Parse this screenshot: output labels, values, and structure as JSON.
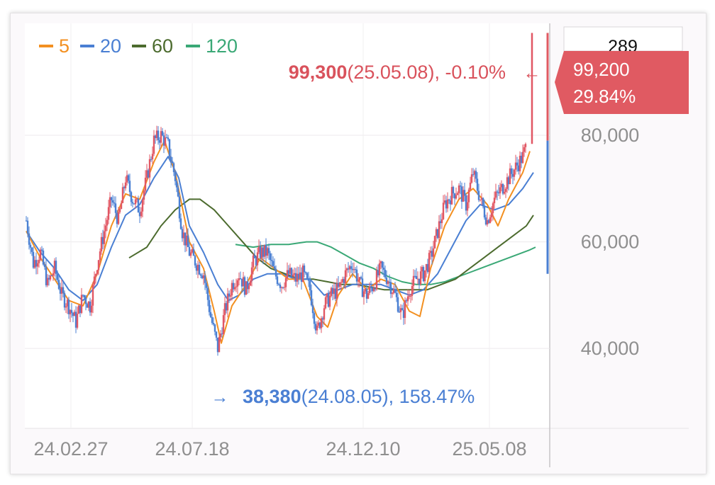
{
  "chart_data": {
    "type": "candlestick",
    "x_ticks": [
      "24.02.27",
      "24.07.18",
      "24.12.10",
      "25.05.08"
    ],
    "y_ticks": [
      "40,000",
      "60,000",
      "80,000"
    ],
    "ylim": [
      25000,
      101000
    ],
    "grid": true,
    "legend": [
      {
        "name": "5",
        "color": "#f39021"
      },
      {
        "name": "20",
        "color": "#4a7fd3"
      },
      {
        "name": "60",
        "color": "#4c6b2e"
      },
      {
        "name": "120",
        "color": "#3aa876"
      }
    ],
    "annotations": {
      "high": {
        "arrow": "←",
        "value": "99,300",
        "date_text": "(25.05.08), -0.10%",
        "color": "#d9525c"
      },
      "low": {
        "arrow": "→",
        "value": "38,380",
        "date_text": "(24.08.05), 158.47%",
        "color": "#4a7fd3"
      }
    },
    "current_price": {
      "price": "99,200",
      "change": "29.84%",
      "value": 99200,
      "color": "#e05a62"
    },
    "volume_label": "289",
    "price_anchors": [
      [
        0,
        64000
      ],
      [
        10,
        56000
      ],
      [
        20,
        58000
      ],
      [
        30,
        52000
      ],
      [
        40,
        55000
      ],
      [
        50,
        50000
      ],
      [
        60,
        48000
      ],
      [
        70,
        45000
      ],
      [
        80,
        50000
      ],
      [
        90,
        48000
      ],
      [
        100,
        56000
      ],
      [
        110,
        62000
      ],
      [
        120,
        68000
      ],
      [
        130,
        64000
      ],
      [
        140,
        72000
      ],
      [
        150,
        68000
      ],
      [
        160,
        66000
      ],
      [
        170,
        72000
      ],
      [
        180,
        79000
      ],
      [
        190,
        80000
      ],
      [
        200,
        78000
      ],
      [
        210,
        72000
      ],
      [
        220,
        62000
      ],
      [
        230,
        58000
      ],
      [
        240,
        56000
      ],
      [
        250,
        54000
      ],
      [
        260,
        46000
      ],
      [
        270,
        40000
      ],
      [
        280,
        47000
      ],
      [
        290,
        52000
      ],
      [
        300,
        54000
      ],
      [
        310,
        51000
      ],
      [
        320,
        56000
      ],
      [
        330,
        58000
      ],
      [
        340,
        58000
      ],
      [
        350,
        54000
      ],
      [
        360,
        52000
      ],
      [
        370,
        54000
      ],
      [
        380,
        53000
      ],
      [
        390,
        54000
      ],
      [
        400,
        51000
      ],
      [
        410,
        43000
      ],
      [
        420,
        48000
      ],
      [
        430,
        50000
      ],
      [
        440,
        51000
      ],
      [
        450,
        54000
      ],
      [
        460,
        56000
      ],
      [
        470,
        52000
      ],
      [
        480,
        50000
      ],
      [
        490,
        52000
      ],
      [
        500,
        55000
      ],
      [
        510,
        53000
      ],
      [
        520,
        50000
      ],
      [
        530,
        46000
      ],
      [
        540,
        51000
      ],
      [
        550,
        53000
      ],
      [
        560,
        54000
      ],
      [
        570,
        57000
      ],
      [
        580,
        62000
      ],
      [
        590,
        67000
      ],
      [
        600,
        69000
      ],
      [
        610,
        70000
      ],
      [
        620,
        67000
      ],
      [
        630,
        73000
      ],
      [
        640,
        68000
      ],
      [
        650,
        64000
      ],
      [
        660,
        68000
      ],
      [
        670,
        70000
      ],
      [
        680,
        72000
      ],
      [
        690,
        74000
      ],
      [
        700,
        76000
      ],
      [
        705,
        78000
      ],
      [
        713,
        99200
      ]
    ],
    "ma5": [
      [
        0,
        62000
      ],
      [
        20,
        57000
      ],
      [
        40,
        53000
      ],
      [
        60,
        49000
      ],
      [
        80,
        48000
      ],
      [
        100,
        54000
      ],
      [
        120,
        63000
      ],
      [
        140,
        69000
      ],
      [
        160,
        68000
      ],
      [
        180,
        75000
      ],
      [
        195,
        79000
      ],
      [
        210,
        73000
      ],
      [
        230,
        60000
      ],
      [
        250,
        55000
      ],
      [
        265,
        47000
      ],
      [
        275,
        41000
      ],
      [
        290,
        48000
      ],
      [
        310,
        52000
      ],
      [
        330,
        57000
      ],
      [
        350,
        55000
      ],
      [
        370,
        53000
      ],
      [
        390,
        53000
      ],
      [
        410,
        46000
      ],
      [
        425,
        44000
      ],
      [
        440,
        50000
      ],
      [
        460,
        54000
      ],
      [
        480,
        51000
      ],
      [
        500,
        53000
      ],
      [
        520,
        52000
      ],
      [
        540,
        47000
      ],
      [
        555,
        46000
      ],
      [
        570,
        55000
      ],
      [
        590,
        63000
      ],
      [
        610,
        68000
      ],
      [
        630,
        70000
      ],
      [
        650,
        67000
      ],
      [
        665,
        63000
      ],
      [
        680,
        68000
      ],
      [
        700,
        73000
      ],
      [
        710,
        77000
      ]
    ],
    "ma20": [
      [
        0,
        62000
      ],
      [
        20,
        58000
      ],
      [
        40,
        55000
      ],
      [
        60,
        51000
      ],
      [
        80,
        49000
      ],
      [
        100,
        52000
      ],
      [
        120,
        59000
      ],
      [
        140,
        65000
      ],
      [
        160,
        67000
      ],
      [
        180,
        72000
      ],
      [
        200,
        76000
      ],
      [
        215,
        72000
      ],
      [
        230,
        63000
      ],
      [
        250,
        58000
      ],
      [
        270,
        52000
      ],
      [
        285,
        49000
      ],
      [
        300,
        50000
      ],
      [
        320,
        53000
      ],
      [
        340,
        54000
      ],
      [
        360,
        54000
      ],
      [
        380,
        53000
      ],
      [
        400,
        53000
      ],
      [
        420,
        50000
      ],
      [
        440,
        51000
      ],
      [
        460,
        52000
      ],
      [
        480,
        52000
      ],
      [
        500,
        52000
      ],
      [
        520,
        51000
      ],
      [
        540,
        50000
      ],
      [
        560,
        51000
      ],
      [
        580,
        54000
      ],
      [
        600,
        59000
      ],
      [
        620,
        64000
      ],
      [
        640,
        67000
      ],
      [
        660,
        66000
      ],
      [
        680,
        67000
      ],
      [
        700,
        70000
      ],
      [
        715,
        73000
      ]
    ],
    "ma60": [
      [
        145,
        57000
      ],
      [
        170,
        59000
      ],
      [
        190,
        63000
      ],
      [
        210,
        66000
      ],
      [
        230,
        68000
      ],
      [
        245,
        68000
      ],
      [
        265,
        66000
      ],
      [
        285,
        63000
      ],
      [
        305,
        60000
      ],
      [
        325,
        57000
      ],
      [
        345,
        55000
      ],
      [
        365,
        54000
      ],
      [
        385,
        53000
      ],
      [
        405,
        53000
      ],
      [
        425,
        52500
      ],
      [
        445,
        52000
      ],
      [
        465,
        52000
      ],
      [
        485,
        51500
      ],
      [
        505,
        51000
      ],
      [
        525,
        51000
      ],
      [
        545,
        51000
      ],
      [
        565,
        51000
      ],
      [
        585,
        52000
      ],
      [
        605,
        53000
      ],
      [
        625,
        55000
      ],
      [
        645,
        57000
      ],
      [
        665,
        59000
      ],
      [
        685,
        61000
      ],
      [
        705,
        63000
      ],
      [
        715,
        65000
      ]
    ],
    "ma120": [
      [
        295,
        59500
      ],
      [
        320,
        59000
      ],
      [
        345,
        59500
      ],
      [
        370,
        59500
      ],
      [
        395,
        60000
      ],
      [
        410,
        60000
      ],
      [
        430,
        59000
      ],
      [
        450,
        57500
      ],
      [
        470,
        56000
      ],
      [
        490,
        55000
      ],
      [
        510,
        53500
      ],
      [
        530,
        52500
      ],
      [
        550,
        52000
      ],
      [
        570,
        52000
      ],
      [
        590,
        52500
      ],
      [
        610,
        53500
      ],
      [
        630,
        54500
      ],
      [
        650,
        55500
      ],
      [
        670,
        56500
      ],
      [
        690,
        57500
      ],
      [
        710,
        58500
      ],
      [
        718,
        59000
      ]
    ]
  }
}
